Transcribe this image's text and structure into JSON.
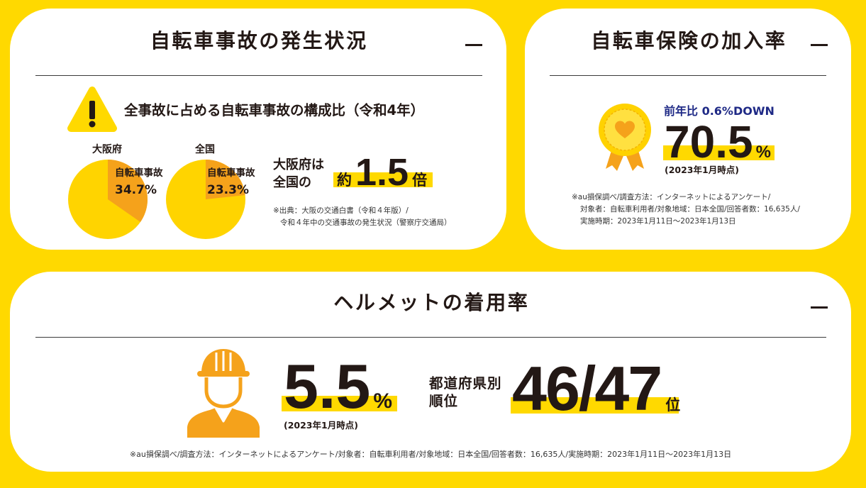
{
  "colors": {
    "page_background": "#FFD900",
    "card": "#FFFFFF",
    "text": "#231815",
    "highlight": "#FFD900",
    "orange": "#F5A21B",
    "pie_base": "#FFD400",
    "change_text": "#1F2A86"
  },
  "accident": {
    "title": "自転車事故の発生状況",
    "toggle_icon": "minus-icon",
    "alert_icon": "warning-icon",
    "heading": "全事故に占める自転車事故の構成比（令和4年）",
    "pies": [
      {
        "region": "大阪府",
        "slice_label": "自転車事故",
        "share": 34.7,
        "share_label": "34.7%"
      },
      {
        "region": "全国",
        "slice_label": "自転車事故",
        "share": 23.3,
        "share_label": "23.3%"
      }
    ],
    "comparison": {
      "line1": "大阪府は",
      "line2": "全国の",
      "prefix": "約",
      "value": "1.5",
      "suffix": "倍"
    },
    "source_lines": [
      "※出典：大阪の交通白書（令和４年版）/",
      "令和４年中の交通事故の発生状況（警察庁交通局）"
    ]
  },
  "insurance": {
    "title": "自転車保険の加入率",
    "toggle_icon": "minus-icon",
    "badge_icon": "medal-heart-icon",
    "change_label": "前年比 0.6%DOWN",
    "rate": "70.5",
    "rate_unit": "%",
    "as_of": "(2023年1月時点)",
    "note_lines": [
      "※au損保調べ/調査方法：インターネットによるアンケート/",
      "対象者：自転車利用者/対象地域：日本全国/回答者数：16,635人/",
      "実施時期：2023年1月11日〜2023年1月13日"
    ]
  },
  "helmet": {
    "title": "ヘルメットの着用率",
    "toggle_icon": "minus-icon",
    "figure_icon": "helmet-worker-icon",
    "rate": "5.5",
    "rate_unit": "%",
    "as_of": "(2023年1月時点)",
    "rank_label": [
      "都道府県別",
      "順位"
    ],
    "rank": "46/47",
    "rank_unit": "位",
    "note": "※au損保調べ/調査方法：インターネットによるアンケート/対象者：自転車利用者/対象地域：日本全国/回答者数：16,635人/実施時期：2023年1月11日〜2023年1月13日"
  }
}
